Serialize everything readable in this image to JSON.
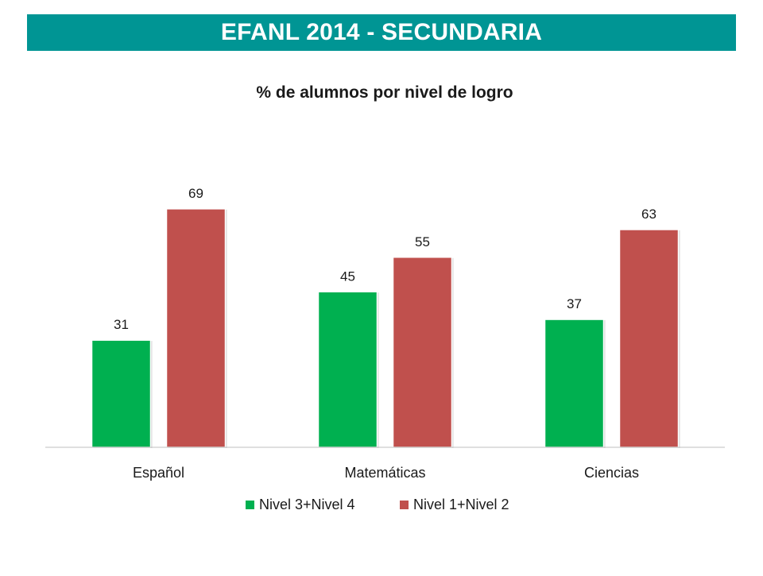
{
  "header": {
    "title": "EFANL 2014 - SECUNDARIA"
  },
  "colors": {
    "banner": "#009594",
    "series1": "#00B050",
    "series2": "#C0504D"
  },
  "chart_data": {
    "type": "bar",
    "title": "% de alumnos por nivel de logro",
    "xlabel": "",
    "ylabel": "",
    "categories": [
      "Español",
      "Matemáticas",
      "Ciencias"
    ],
    "series": [
      {
        "name": "Nivel 3+Nivel 4",
        "values": [
          31,
          45,
          37
        ],
        "color": "#00B050"
      },
      {
        "name": "Nivel 1+Nivel 2",
        "values": [
          69,
          55,
          63
        ],
        "color": "#C0504D"
      }
    ],
    "ylim": [
      0,
      80
    ],
    "grid": false,
    "data_labels": true,
    "legend": "bottom"
  }
}
